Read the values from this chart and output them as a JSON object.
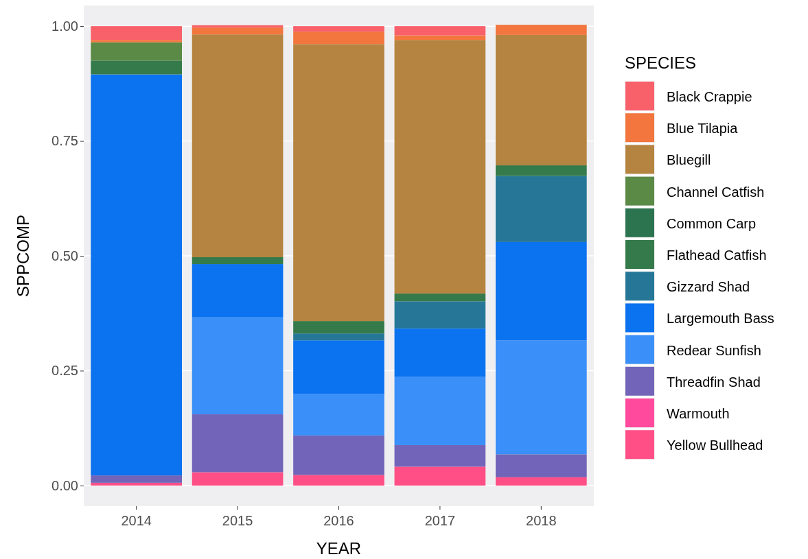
{
  "chart_data": {
    "type": "bar",
    "stacked": true,
    "xlabel": "YEAR",
    "ylabel": "SPPCOMP",
    "legend_title": "SPECIES",
    "legend": "right",
    "grid": "y",
    "categories": [
      "2014",
      "2015",
      "2016",
      "2017",
      "2018"
    ],
    "ylim": [
      -0.045,
      1.045
    ],
    "yticks": [
      {
        "value": 0,
        "label": "0.00"
      },
      {
        "value": 0.25,
        "label": "0.25"
      },
      {
        "value": 0.5,
        "label": "0.50"
      },
      {
        "value": 0.75,
        "label": "0.75"
      },
      {
        "value": 1,
        "label": "1.00"
      }
    ],
    "series": [
      {
        "name": "Yellow Bullhead",
        "color": "#ff4f86",
        "values": [
          0.006,
          0.029,
          0.023,
          0.041,
          0.018
        ]
      },
      {
        "name": "Warmouth",
        "color": "#ff4a9e",
        "values": [
          0,
          0,
          0,
          0,
          0
        ]
      },
      {
        "name": "Threadfin Shad",
        "color": "#7264b8",
        "values": [
          0.016,
          0.126,
          0.086,
          0.047,
          0.05
        ]
      },
      {
        "name": "Redear Sunfish",
        "color": "#3a8ff8",
        "values": [
          0,
          0.211,
          0.09,
          0.149,
          0.248
        ]
      },
      {
        "name": "Largemouth Bass",
        "color": "#0b72f0",
        "values": [
          0.873,
          0.116,
          0.117,
          0.105,
          0.214
        ]
      },
      {
        "name": "Gizzard Shad",
        "color": "#267797",
        "values": [
          0,
          0,
          0.015,
          0.059,
          0.144
        ]
      },
      {
        "name": "Flathead Catfish",
        "color": "#357a4a",
        "values": [
          0.03,
          0.015,
          0.027,
          0.017,
          0.023
        ]
      },
      {
        "name": "Common Carp",
        "color": "#2c7350",
        "values": [
          0,
          0,
          0,
          0,
          0
        ]
      },
      {
        "name": "Channel Catfish",
        "color": "#5a8a46",
        "values": [
          0.04,
          0,
          0,
          0,
          0
        ]
      },
      {
        "name": "Bluegill",
        "color": "#b58440",
        "values": [
          0,
          0.485,
          0.603,
          0.552,
          0.284
        ]
      },
      {
        "name": "Blue Tilapia",
        "color": "#f2763e",
        "values": [
          0.005,
          0.015,
          0.027,
          0.01,
          0.022
        ]
      },
      {
        "name": "Black Crappie",
        "color": "#f8606a",
        "values": [
          0.03,
          0.005,
          0.012,
          0.02,
          0
        ]
      }
    ]
  }
}
